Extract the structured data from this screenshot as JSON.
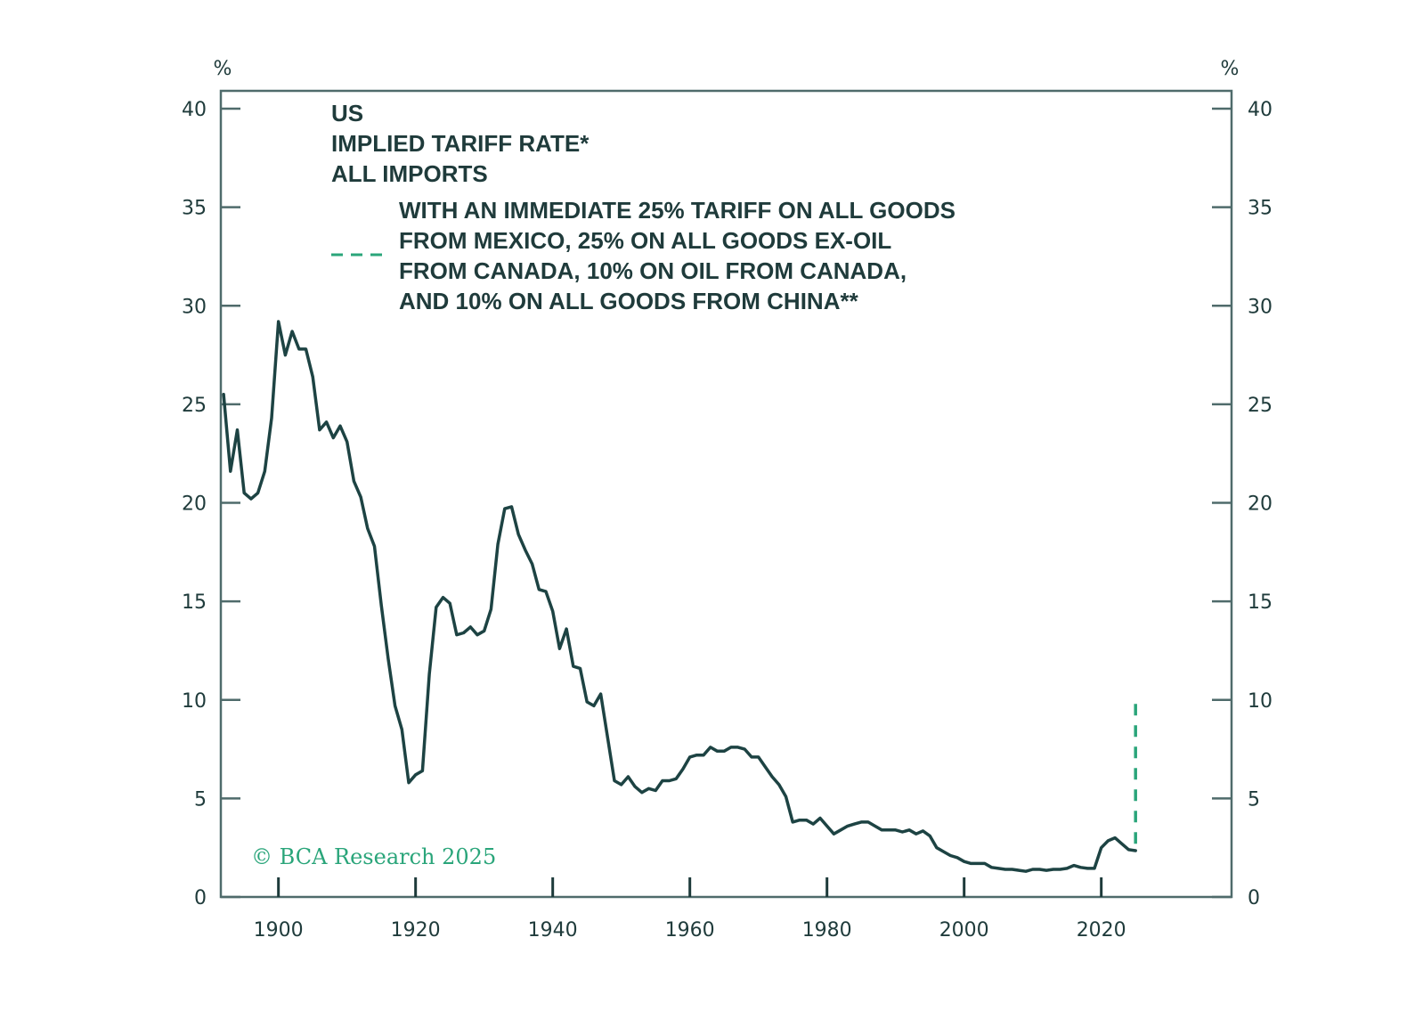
{
  "chart_data": {
    "type": "line",
    "title_lines": [
      "US",
      "IMPLIED TARIFF RATE*",
      "ALL IMPORTS"
    ],
    "left_unit": "%",
    "right_unit": "%",
    "xlabel": "",
    "ylabel": "%",
    "xlim": [
      1891.6,
      2039
    ],
    "ylim": [
      0,
      40
    ],
    "y_ticks": [
      0,
      5,
      10,
      15,
      20,
      25,
      30,
      35,
      40
    ],
    "y_tick_labels": [
      "0",
      "5",
      "10",
      "15",
      "20",
      "25",
      "30",
      "35",
      "40"
    ],
    "x_ticks": [
      1900,
      1920,
      1940,
      1960,
      1980,
      2000,
      2020
    ],
    "x_tick_labels": [
      "1900",
      "1920",
      "1940",
      "1960",
      "1980",
      "2000",
      "2020"
    ],
    "grid": false,
    "series": [
      {
        "name": "US implied tariff rate, all imports",
        "style": "solid",
        "color": "#1d4343",
        "x": [
          1892,
          1893,
          1894,
          1895,
          1896,
          1897,
          1898,
          1899,
          1900,
          1901,
          1902,
          1903,
          1904,
          1905,
          1906,
          1907,
          1908,
          1909,
          1910,
          1911,
          1912,
          1913,
          1914,
          1915,
          1916,
          1917,
          1918,
          1919,
          1920,
          1921,
          1922,
          1923,
          1924,
          1925,
          1926,
          1927,
          1928,
          1929,
          1930,
          1931,
          1932,
          1933,
          1934,
          1935,
          1936,
          1937,
          1938,
          1939,
          1940,
          1941,
          1942,
          1943,
          1944,
          1945,
          1946,
          1947,
          1948,
          1949,
          1950,
          1951,
          1952,
          1953,
          1954,
          1955,
          1956,
          1957,
          1958,
          1959,
          1960,
          1961,
          1962,
          1963,
          1964,
          1965,
          1966,
          1967,
          1968,
          1969,
          1970,
          1971,
          1972,
          1973,
          1974,
          1975,
          1976,
          1977,
          1978,
          1979,
          1980,
          1981,
          1982,
          1983,
          1984,
          1985,
          1986,
          1987,
          1988,
          1989,
          1990,
          1991,
          1992,
          1993,
          1994,
          1995,
          1996,
          1997,
          1998,
          1999,
          2000,
          2001,
          2002,
          2003,
          2004,
          2005,
          2006,
          2007,
          2008,
          2009,
          2010,
          2011,
          2012,
          2013,
          2014,
          2015,
          2016,
          2017,
          2018,
          2019,
          2020,
          2021,
          2022,
          2023,
          2024,
          2025
        ],
        "values": [
          25.5,
          21.6,
          23.7,
          20.5,
          20.2,
          20.5,
          21.6,
          24.3,
          29.2,
          27.5,
          28.7,
          27.8,
          27.8,
          26.4,
          23.7,
          24.1,
          23.3,
          23.9,
          23.1,
          21.1,
          20.3,
          18.7,
          17.8,
          14.8,
          12.1,
          9.7,
          8.5,
          5.8,
          6.2,
          6.4,
          11.3,
          14.7,
          15.2,
          14.9,
          13.3,
          13.4,
          13.7,
          13.3,
          13.5,
          14.6,
          17.9,
          19.7,
          19.8,
          18.4,
          17.6,
          16.9,
          15.6,
          15.5,
          14.5,
          12.6,
          13.6,
          11.7,
          11.6,
          9.9,
          9.7,
          10.3,
          8.1,
          5.9,
          5.7,
          6.1,
          5.6,
          5.3,
          5.5,
          5.4,
          5.9,
          5.9,
          6.0,
          6.5,
          7.1,
          7.2,
          7.2,
          7.6,
          7.4,
          7.4,
          7.6,
          7.6,
          7.5,
          7.1,
          7.1,
          6.6,
          6.1,
          5.7,
          5.1,
          3.8,
          3.9,
          3.9,
          3.7,
          4.0,
          3.6,
          3.2,
          3.4,
          3.6,
          3.7,
          3.8,
          3.8,
          3.6,
          3.4,
          3.4,
          3.4,
          3.3,
          3.4,
          3.2,
          3.35,
          3.1,
          2.5,
          2.3,
          2.1,
          2.0,
          1.8,
          1.7,
          1.7,
          1.7,
          1.5,
          1.45,
          1.4,
          1.4,
          1.35,
          1.3,
          1.4,
          1.4,
          1.35,
          1.4,
          1.4,
          1.45,
          1.6,
          1.5,
          1.45,
          1.45,
          2.5,
          2.85,
          3.0,
          2.7,
          2.4,
          2.35
        ]
      },
      {
        "name": "With an immediate 25% tariff on all goods from Mexico, 25% on all goods ex-oil from Canada, 10% on oil from Canada, and 10% on all goods from China**",
        "style": "dashed",
        "color": "#2aa57a",
        "x": [
          2025,
          2025
        ],
        "values": [
          2.7,
          10.0
        ]
      }
    ],
    "legend": {
      "placement": "top-left",
      "dashed_entry_lines": [
        "WITH AN IMMEDIATE 25% TARIFF ON ALL GOODS",
        "FROM MEXICO, 25% ON ALL GOODS EX-OIL",
        "FROM CANADA, 10% ON OIL FROM CANADA,",
        "AND 10% ON ALL GOODS FROM CHINA**"
      ]
    },
    "annotations": {
      "watermark": "© BCA Research 2025"
    }
  },
  "colors": {
    "line": "#1d4343",
    "axis": "#4f6b6b",
    "dashed": "#2aa57a",
    "text": "#1f3b3b"
  }
}
